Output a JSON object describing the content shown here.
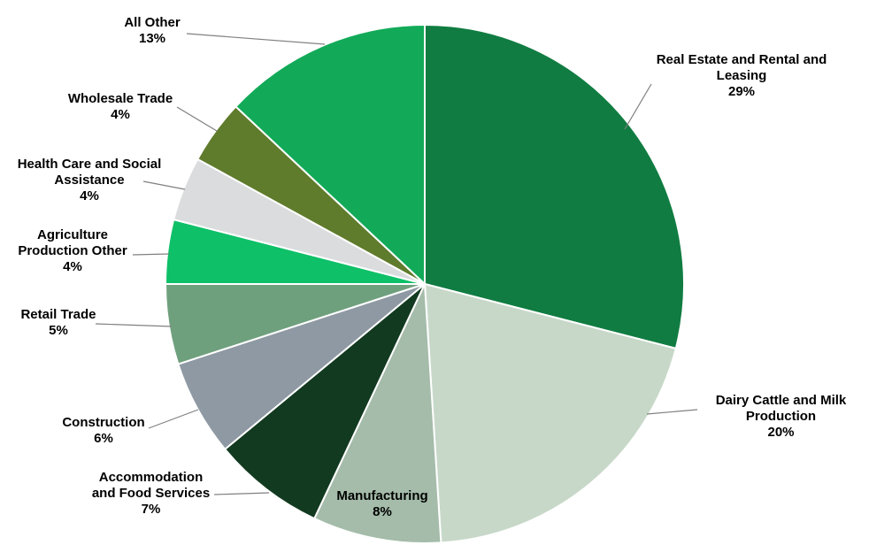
{
  "chart_data": {
    "type": "pie",
    "title": "",
    "legend": "none",
    "direction": "clockwise",
    "start_angle_deg": 0,
    "background": "#FFFFFF",
    "leader_line_color": "#808080",
    "slices": [
      {
        "key": "real-estate",
        "label": "Real Estate and Rental and Leasing",
        "label_display": "Real Estate and Rental and\nLeasing",
        "value": 29,
        "pct_label": "29%",
        "color": "#107C41"
      },
      {
        "key": "dairy",
        "label": "Dairy Cattle and Milk Production",
        "label_display": "Dairy Cattle and Milk\nProduction",
        "value": 20,
        "pct_label": "20%",
        "color": "#C7D8C8"
      },
      {
        "key": "manufacturing",
        "label": "Manufacturing",
        "label_display": "Manufacturing",
        "value": 8,
        "pct_label": "8%",
        "color": "#A4BCA9"
      },
      {
        "key": "accommodation",
        "label": "Accommodation and Food Services",
        "label_display": "Accommodation\nand Food Services",
        "value": 7,
        "pct_label": "7%",
        "color": "#123A20"
      },
      {
        "key": "construction",
        "label": "Construction",
        "label_display": "Construction",
        "value": 6,
        "pct_label": "6%",
        "color": "#8E99A3"
      },
      {
        "key": "retail",
        "label": "Retail Trade",
        "label_display": "Retail Trade",
        "value": 5,
        "pct_label": "5%",
        "color": "#6FA07E"
      },
      {
        "key": "agriculture",
        "label": "Agriculture Production Other",
        "label_display": "Agriculture\nProduction Other",
        "value": 4,
        "pct_label": "4%",
        "color": "#0EC068"
      },
      {
        "key": "health-care",
        "label": "Health Care and Social Assistance",
        "label_display": "Health Care and Social\nAssistance",
        "value": 4,
        "pct_label": "4%",
        "color": "#DADCDD"
      },
      {
        "key": "wholesale",
        "label": "Wholesale Trade",
        "label_display": "Wholesale Trade",
        "value": 4,
        "pct_label": "4%",
        "color": "#5F7B2C"
      },
      {
        "key": "all-other",
        "label": "All Other",
        "label_display": "All Other",
        "value": 13,
        "pct_label": "13%",
        "color": "#12AA58"
      }
    ]
  }
}
